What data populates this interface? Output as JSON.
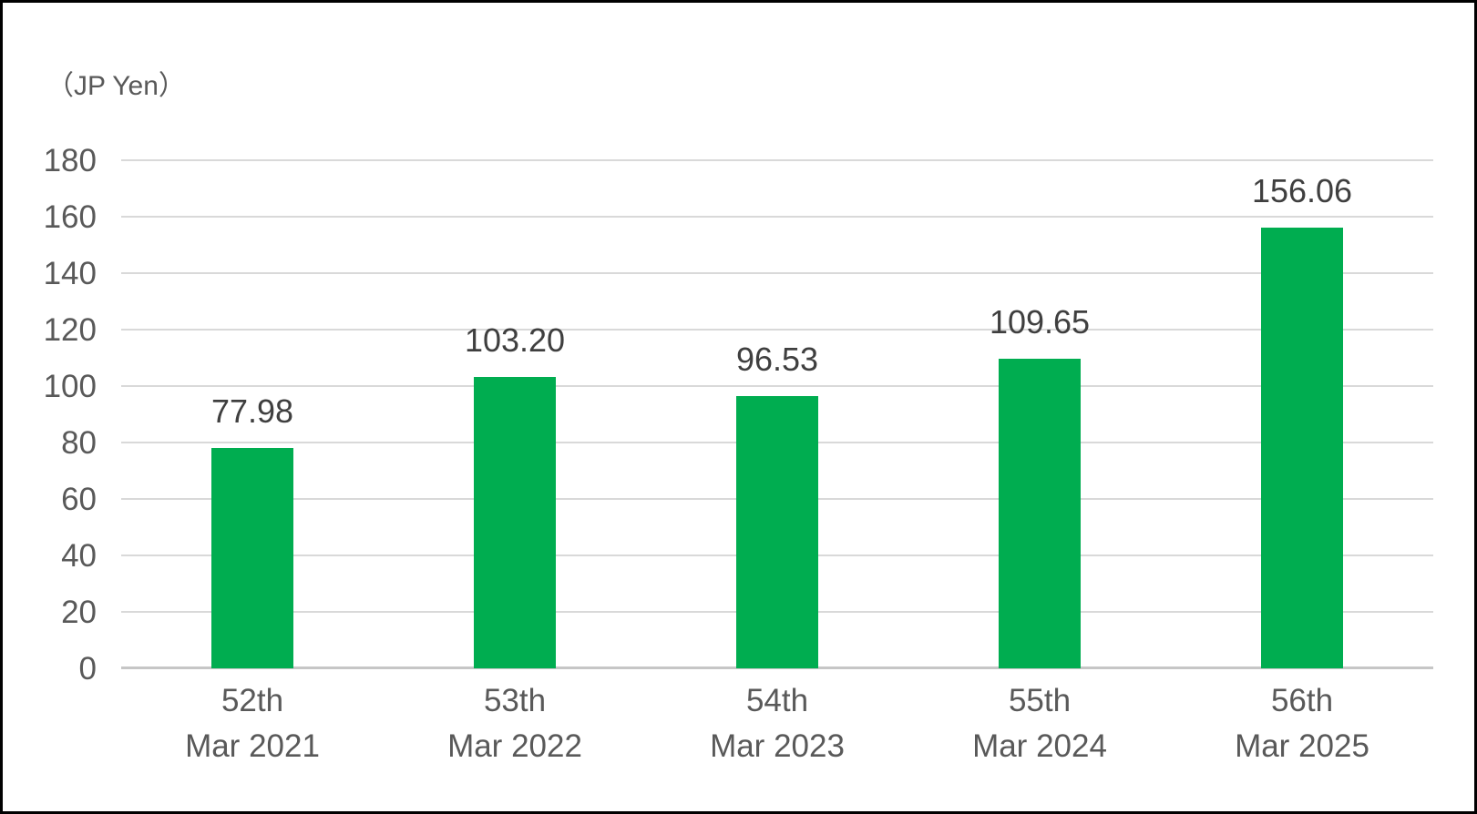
{
  "chart_data": {
    "type": "bar",
    "ylabel": "（JP Yen）",
    "categories": [
      [
        "52th",
        "Mar 2021"
      ],
      [
        "53th",
        "Mar 2022"
      ],
      [
        "54th",
        "Mar 2023"
      ],
      [
        "55th",
        "Mar 2024"
      ],
      [
        "56th",
        "Mar 2025"
      ]
    ],
    "values": [
      77.98,
      103.2,
      96.53,
      109.65,
      156.06
    ],
    "value_labels": [
      "77.98",
      "103.20",
      "96.53",
      "109.65",
      "156.06"
    ],
    "yticks": [
      0,
      20,
      40,
      60,
      80,
      100,
      120,
      140,
      160,
      180
    ],
    "ylim": [
      0,
      180
    ],
    "grid": true,
    "legend_position": "none",
    "colors": {
      "bar": "#00AD50",
      "gridline": "#D9D9D9",
      "axis_line": "#C6C6C6",
      "tick_label": "#595959",
      "value_label": "#3F3F3F",
      "category_label": "#595959",
      "frame_border": "#000000",
      "background": "#FFFFFF"
    }
  }
}
